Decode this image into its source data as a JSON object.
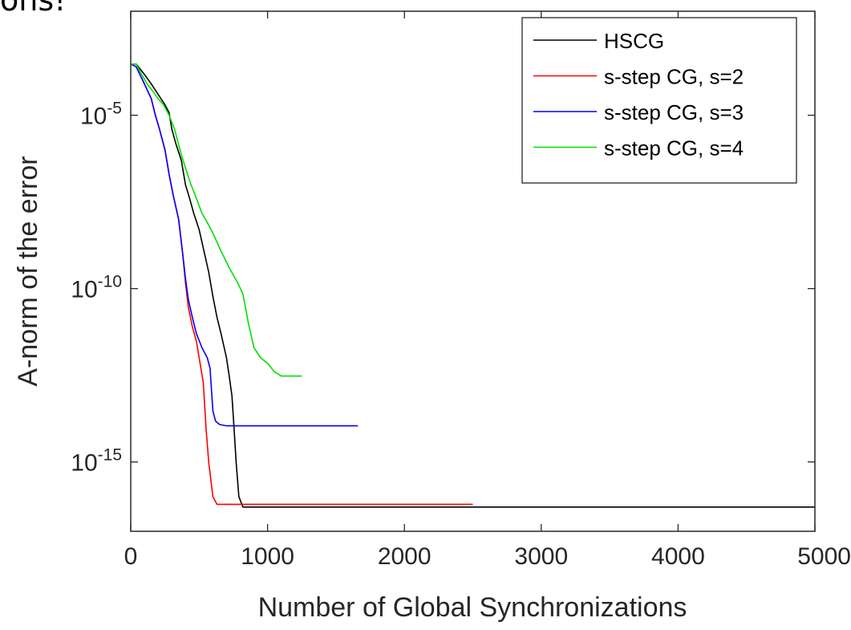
{
  "slide_fragment": "ons!",
  "chart_data": {
    "type": "line",
    "title": "",
    "xlabel": "Number of Global Synchronizations",
    "ylabel": "A-norm of the error",
    "xscale": "linear",
    "yscale": "log",
    "xlim": [
      0,
      5000
    ],
    "ylim": [
      1e-17,
      0.01
    ],
    "xticks": [
      0,
      1000,
      2000,
      3000,
      4000,
      5000
    ],
    "xtick_labels": [
      "0",
      "1000",
      "2000",
      "3000",
      "4000",
      "5000"
    ],
    "yticks": [
      1e-05,
      1e-10,
      1e-15
    ],
    "ytick_labels": [
      {
        "base": "10",
        "exp": "-5"
      },
      {
        "base": "10",
        "exp": "-10"
      },
      {
        "base": "10",
        "exp": "-15"
      }
    ],
    "grid": false,
    "legend_position": "top-right",
    "series": [
      {
        "name": "HSCG",
        "color": "#000000",
        "x": [
          0,
          40,
          100,
          150,
          200,
          250,
          280,
          300,
          330,
          370,
          400,
          430,
          460,
          500,
          540,
          570,
          600,
          630,
          660,
          700,
          720,
          740,
          750,
          770,
          790,
          820,
          5000
        ],
        "y": [
          0.0003,
          0.0003,
          0.00015,
          8e-05,
          4e-05,
          2e-05,
          1.2e-05,
          4e-06,
          1.5e-06,
          5e-07,
          1e-07,
          4e-08,
          1.5e-08,
          5e-09,
          1e-09,
          3e-10,
          6e-11,
          1.5e-11,
          5e-12,
          1e-12,
          3e-13,
          8e-14,
          2e-14,
          1e-15,
          1e-16,
          5e-17,
          5e-17
        ]
      },
      {
        "name": "s-step CG, s=2",
        "color": "#ff0000",
        "x": [
          0,
          40,
          100,
          150,
          180,
          210,
          250,
          280,
          310,
          350,
          380,
          400,
          420,
          450,
          480,
          500,
          530,
          550,
          570,
          600,
          630,
          2500
        ],
        "y": [
          0.0003,
          0.00025,
          8e-05,
          3e-05,
          1e-05,
          4e-06,
          1e-06,
          2e-07,
          5e-08,
          1e-08,
          1e-09,
          1.5e-10,
          3e-11,
          8e-12,
          3e-12,
          1e-12,
          2e-13,
          1e-14,
          1e-15,
          1e-16,
          6e-17,
          6e-17
        ]
      },
      {
        "name": "s-step CG, s=3",
        "color": "#0000ff",
        "x": [
          0,
          40,
          100,
          150,
          180,
          210,
          250,
          280,
          310,
          350,
          380,
          400,
          420,
          450,
          480,
          520,
          560,
          580,
          600,
          620,
          650,
          700,
          1660
        ],
        "y": [
          0.0003,
          0.00025,
          8e-05,
          3e-05,
          1e-05,
          4e-06,
          1e-06,
          2e-07,
          5e-08,
          1e-08,
          1e-09,
          2e-10,
          5e-11,
          1.5e-11,
          5e-12,
          2e-12,
          1e-12,
          5e-13,
          3e-14,
          1.5e-14,
          1.2e-14,
          1.1e-14,
          1.1e-14
        ]
      },
      {
        "name": "s-step CG, s=4",
        "color": "#00e000",
        "x": [
          0,
          40,
          80,
          120,
          160,
          200,
          240,
          280,
          320,
          360,
          400,
          440,
          480,
          520,
          560,
          600,
          660,
          720,
          780,
          820,
          860,
          900,
          950,
          1000,
          1050,
          1100,
          1250
        ],
        "y": [
          0.0003,
          0.0003,
          0.00015,
          8e-05,
          5e-05,
          3e-05,
          2e-05,
          1e-05,
          4e-06,
          1e-06,
          3e-07,
          1e-07,
          4e-08,
          1.5e-08,
          8e-09,
          4e-09,
          1.2e-09,
          4e-10,
          1.5e-10,
          7e-11,
          1e-11,
          2e-12,
          1e-12,
          7e-13,
          4e-13,
          3e-13,
          3e-13
        ]
      }
    ]
  }
}
